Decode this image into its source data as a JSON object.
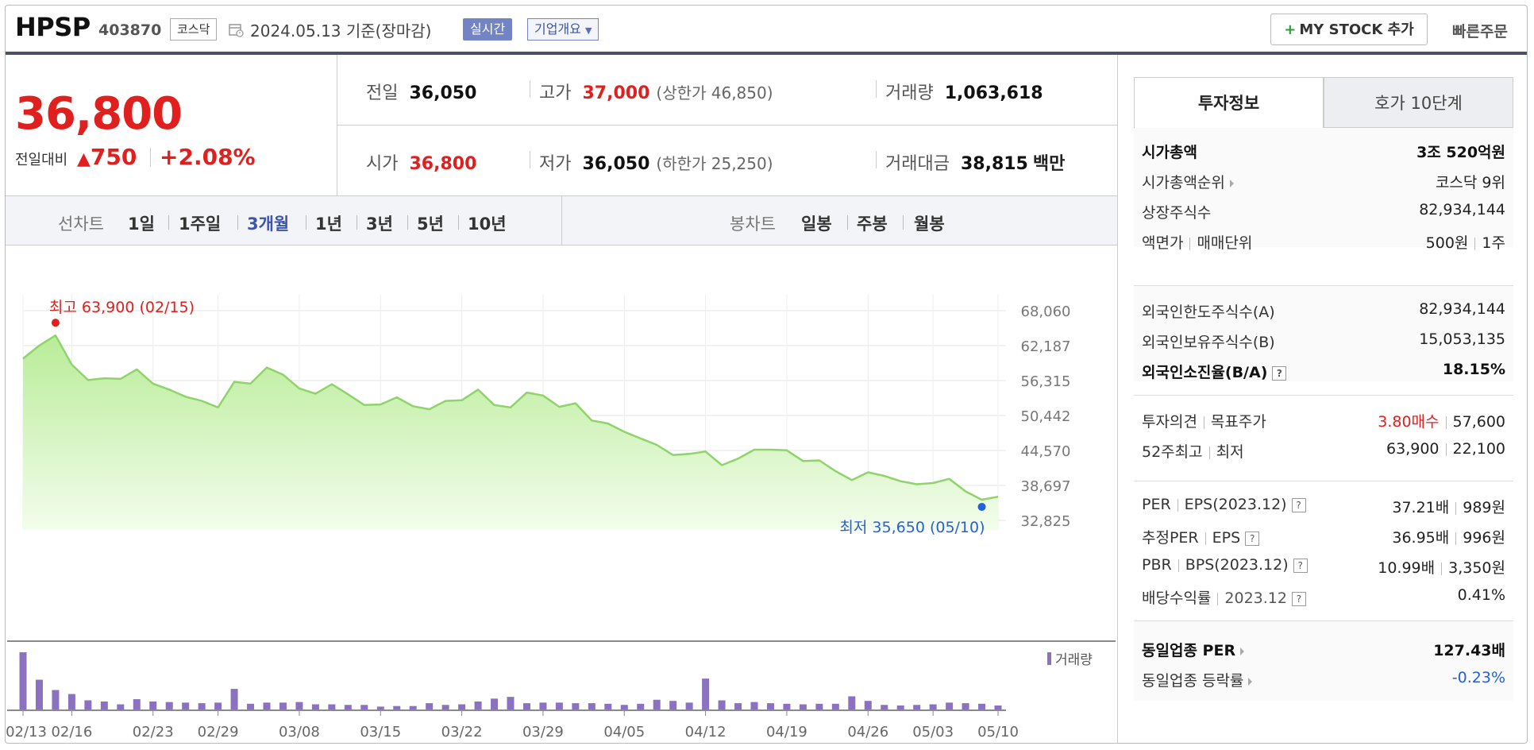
{
  "header": {
    "ticker": "HPSP",
    "code": "403870",
    "market": "코스닥",
    "date": "2024.05.13  기준(장마감)",
    "realtime_label": "실시간",
    "overview_label": "기업개요",
    "mystock_label": "MY STOCK 추가",
    "quick_order_label": "빠른주문"
  },
  "price": {
    "current": "36,800",
    "change_label": "전일대비",
    "change_amount": "750",
    "change_percent": "+2.08%",
    "up_color": "#e0201e"
  },
  "quote": {
    "prev_label": "전일",
    "prev": "36,050",
    "high_label": "고가",
    "high": "37,000",
    "upper_limit": "(상한가 46,850)",
    "volume_label": "거래량",
    "volume": "1,063,618",
    "open_label": "시가",
    "open": "36,800",
    "low_label": "저가",
    "low": "36,050",
    "lower_limit": "(하한가 25,250)",
    "amount_label": "거래대금",
    "amount": "38,815",
    "amount_unit": "백만"
  },
  "period_tabs": {
    "line_label": "선차트",
    "items": [
      "1일",
      "1주일",
      "3개월",
      "1년",
      "3년",
      "5년",
      "10년"
    ],
    "active": "3개월",
    "candle_label": "봉차트",
    "candle_items": [
      "일봉",
      "주봉",
      "월봉"
    ]
  },
  "chart_data": {
    "type": "area",
    "line_color": "#8fd46a",
    "fill_color": "#d8f5c4",
    "volume_color": "#8a72c0",
    "high_annotation": "최고 63,900 (02/15)",
    "low_annotation": "최저 35,650 (05/10)",
    "high_color": "#e0201e",
    "low_color": "#2560d8",
    "volume_legend": "거래량",
    "y_ticks": [
      "68,060",
      "62,187",
      "56,315",
      "50,442",
      "44,570",
      "38,697",
      "32,825"
    ],
    "ylim": [
      32825,
      68060
    ],
    "x_tick_labels": [
      "02/13",
      "02/16",
      "02/23",
      "02/29",
      "03/08",
      "03/15",
      "03/22",
      "03/29",
      "04/05",
      "04/12",
      "04/19",
      "04/26",
      "05/03",
      "05/10"
    ],
    "x_tick_index": [
      0,
      3,
      8,
      12,
      17,
      22,
      27,
      32,
      37,
      42,
      47,
      52,
      56,
      60
    ],
    "high_index": 2,
    "low_index": 59,
    "price": [
      60000,
      62200,
      63900,
      59000,
      56400,
      56700,
      56600,
      58200,
      55800,
      54800,
      53600,
      52900,
      51800,
      56100,
      55800,
      58500,
      57300,
      55000,
      54100,
      55700,
      54000,
      52200,
      52300,
      53500,
      52000,
      51500,
      52900,
      53000,
      54800,
      52200,
      51800,
      54300,
      53800,
      51900,
      52500,
      49600,
      49100,
      47700,
      46600,
      45500,
      43800,
      44000,
      44400,
      42100,
      43200,
      44700,
      44700,
      44600,
      42800,
      42900,
      41100,
      39600,
      40900,
      40300,
      39400,
      38900,
      39100,
      39800,
      37700,
      36300,
      36800
    ],
    "volume": [
      100,
      52,
      34,
      27,
      16,
      14,
      9,
      18,
      14,
      13,
      12,
      11,
      12,
      36,
      10,
      12,
      12,
      13,
      9,
      9,
      8,
      8,
      5,
      6,
      6,
      11,
      8,
      9,
      14,
      19,
      22,
      11,
      12,
      12,
      11,
      11,
      10,
      8,
      10,
      17,
      15,
      12,
      54,
      16,
      11,
      13,
      11,
      10,
      9,
      10,
      10,
      23,
      15,
      8,
      7,
      8,
      9,
      12,
      11,
      10,
      7
    ]
  },
  "right_panel": {
    "tab_invest": "투자정보",
    "tab_orderbook": "호가 10단계",
    "market_cap_label": "시가총액",
    "market_cap": "3조 520억원",
    "cap_rank_label": "시가총액순위",
    "cap_rank": "코스닥 9위",
    "shares_label": "상장주식수",
    "shares": "82,934,144",
    "par_label": "액면가",
    "unit_label": "매매단위",
    "par": "500원",
    "unit": "1주",
    "foreign_limit_label": "외국인한도주식수(A)",
    "foreign_limit": "82,934,144",
    "foreign_hold_label": "외국인보유주식수(B)",
    "foreign_hold": "15,053,135",
    "foreign_ratio_label": "외국인소진율(B/A)",
    "foreign_ratio": "18.15%",
    "opinion_label": "투자의견",
    "target_label": "목표주가",
    "opinion": "3.80매수",
    "target": "57,600",
    "w52_label": "52주최고",
    "w52_low_label": "최저",
    "w52_high": "63,900",
    "w52_low": "22,100",
    "per_label": "PER",
    "eps_label": "EPS(2023.12)",
    "per": "37.21배",
    "eps": "989원",
    "est_per_label": "추정PER",
    "est_eps_label": "EPS",
    "est_per": "36.95배",
    "est_eps": "996원",
    "pbr_label": "PBR",
    "bps_label": "BPS(2023.12)",
    "pbr": "10.99배",
    "bps": "3,350원",
    "div_label": "배당수익률",
    "div_date": "2023.12",
    "div": "0.41%",
    "ind_per_label": "동일업종 PER",
    "ind_per": "127.43배",
    "ind_change_label": "동일업종 등락률",
    "ind_change": "-0.23%"
  }
}
